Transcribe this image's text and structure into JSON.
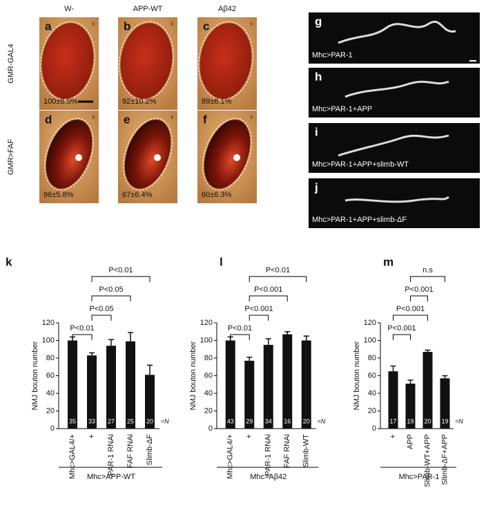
{
  "eye_panels": {
    "columns": [
      "W-",
      "APP-WT",
      "Aβ42"
    ],
    "rows": [
      "GMR-GAL4",
      "GMR>FAF"
    ],
    "panels": [
      {
        "letter": "a",
        "sex": "♀",
        "percent": "100±6.5%"
      },
      {
        "letter": "b",
        "sex": "♀",
        "percent": "92±10.2%"
      },
      {
        "letter": "c",
        "sex": "♀",
        "percent": "89±6.1%"
      },
      {
        "letter": "d",
        "sex": "♀",
        "percent": "96±5.8%"
      },
      {
        "letter": "e",
        "sex": "♀",
        "percent": "67±6.4%"
      },
      {
        "letter": "f",
        "sex": "♀",
        "percent": "60±6.3%"
      }
    ]
  },
  "nmj_panels": [
    {
      "letter": "g",
      "label": "Mhc>PAR-1"
    },
    {
      "letter": "h",
      "label": "Mhc>PAR-1+APP"
    },
    {
      "letter": "i",
      "label": "Mhc>PAR-1+APP+slimb-WT"
    },
    {
      "letter": "j",
      "label": "Mhc>PAR-1+APP+slimb-ΔF"
    }
  ],
  "chart_data": [
    {
      "type": "bar",
      "letter": "k",
      "ylabel": "NMJ bouton number",
      "categories": [
        "Mhc>GAL4/+",
        "+",
        "PAR-1 RNAi",
        "FAF RNAi",
        "Slimb-ΔF"
      ],
      "values": [
        100,
        83,
        94,
        99,
        61
      ],
      "errors": [
        4,
        3,
        7,
        10,
        11
      ],
      "n": [
        35,
        33,
        27,
        25,
        20
      ],
      "n_label": "=N",
      "group_label": "Mhc>APP-WT",
      "comparisons": [
        {
          "bars": [
            0,
            1
          ],
          "label": "P<0.01"
        },
        {
          "bars": [
            1,
            2
          ],
          "label": "P<0.05"
        },
        {
          "bars": [
            1,
            3
          ],
          "label": "P<0.05"
        },
        {
          "bars": [
            1,
            4
          ],
          "label": "P<0.01"
        }
      ],
      "ylim": [
        0,
        120
      ],
      "yticks": [
        0,
        20,
        40,
        60,
        80,
        100,
        120
      ],
      "color": "#111111"
    },
    {
      "type": "bar",
      "letter": "l",
      "ylabel": "NMJ bouton number",
      "categories": [
        "Mhc>GAL4/+",
        "+",
        "PAR-1 RNAi",
        "FAF RNAi",
        "Slimb-WT"
      ],
      "values": [
        100,
        77,
        95,
        107,
        100
      ],
      "errors": [
        4,
        4,
        7,
        3,
        5
      ],
      "n": [
        43,
        29,
        34,
        16,
        20
      ],
      "n_label": "=N",
      "group_label": "Mhc>Aβ42",
      "comparisons": [
        {
          "bars": [
            0,
            1
          ],
          "label": "P<0.01"
        },
        {
          "bars": [
            1,
            2
          ],
          "label": "P<0.001"
        },
        {
          "bars": [
            1,
            3
          ],
          "label": "P<0.001"
        },
        {
          "bars": [
            1,
            4
          ],
          "label": "P<0.01"
        }
      ],
      "ylim": [
        0,
        120
      ],
      "yticks": [
        0,
        20,
        40,
        60,
        80,
        100,
        120
      ],
      "color": "#111111"
    },
    {
      "type": "bar",
      "letter": "m",
      "ylabel": "NMJ bouton number",
      "categories": [
        "+",
        "APP",
        "Slimb-WT+APP",
        "Slimb-ΔF+APP"
      ],
      "values": [
        65,
        51,
        87,
        57
      ],
      "errors": [
        6,
        4,
        2,
        3
      ],
      "n": [
        17,
        19,
        20,
        19
      ],
      "n_label": "=N",
      "group_label": "Mhc>PAR-1",
      "comparisons": [
        {
          "bars": [
            0,
            1
          ],
          "label": "P<0.001"
        },
        {
          "bars": [
            0,
            2
          ],
          "label": "P<0.001"
        },
        {
          "bars": [
            1,
            2
          ],
          "label": "P<0.001"
        },
        {
          "bars": [
            1,
            3
          ],
          "label": "n.s"
        }
      ],
      "ylim": [
        0,
        120
      ],
      "yticks": [
        0,
        20,
        40,
        60,
        80,
        100,
        120
      ],
      "color": "#111111"
    }
  ]
}
